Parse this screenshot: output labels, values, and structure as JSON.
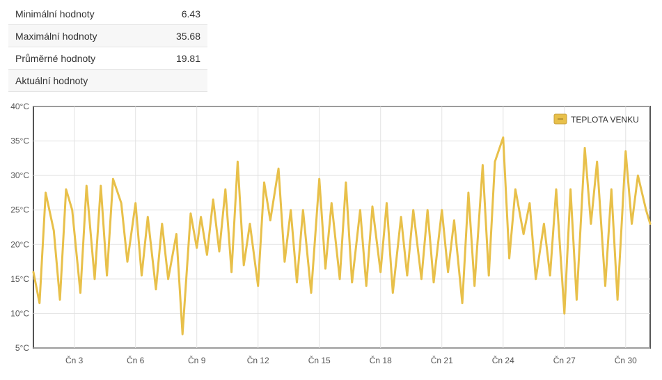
{
  "stats": {
    "rows": [
      {
        "label": "Minimální hodnoty",
        "value": "6.43"
      },
      {
        "label": "Maximální hodnoty",
        "value": "35.68"
      },
      {
        "label": "Průměrné hodnoty",
        "value": "19.81"
      },
      {
        "label": "Aktuální hodnoty",
        "value": ""
      }
    ]
  },
  "chart_data": {
    "type": "line",
    "title": "",
    "xlabel": "",
    "ylabel": "",
    "legend": {
      "position": "top-right",
      "entries": [
        "TEPLOTA VENKU"
      ]
    },
    "grid": true,
    "xlim": [
      1,
      31.2
    ],
    "ylim": [
      5,
      40
    ],
    "y_ticks": [
      {
        "value": 5,
        "label": "5°C"
      },
      {
        "value": 10,
        "label": "10°C"
      },
      {
        "value": 15,
        "label": "15°C"
      },
      {
        "value": 20,
        "label": "20°C"
      },
      {
        "value": 25,
        "label": "25°C"
      },
      {
        "value": 30,
        "label": "30°C"
      },
      {
        "value": 35,
        "label": "35°C"
      },
      {
        "value": 40,
        "label": "40°C"
      }
    ],
    "x_ticks": [
      {
        "value": 3,
        "label": "Čn 3"
      },
      {
        "value": 6,
        "label": "Čn 6"
      },
      {
        "value": 9,
        "label": "Čn 9"
      },
      {
        "value": 12,
        "label": "Čn 12"
      },
      {
        "value": 15,
        "label": "Čn 15"
      },
      {
        "value": 18,
        "label": "Čn 18"
      },
      {
        "value": 21,
        "label": "Čn 21"
      },
      {
        "value": 24,
        "label": "Čn 24"
      },
      {
        "value": 27,
        "label": "Čn 27"
      },
      {
        "value": 30,
        "label": "Čn 30"
      }
    ],
    "series": [
      {
        "name": "TEPLOTA VENKU",
        "color": "#e8c04a",
        "x": [
          1.0,
          1.3,
          1.6,
          2.0,
          2.3,
          2.6,
          2.9,
          3.3,
          3.6,
          4.0,
          4.3,
          4.6,
          4.9,
          5.3,
          5.6,
          6.0,
          6.3,
          6.6,
          7.0,
          7.3,
          7.6,
          8.0,
          8.3,
          8.7,
          9.0,
          9.2,
          9.5,
          9.8,
          10.1,
          10.4,
          10.7,
          11.0,
          11.3,
          11.6,
          12.0,
          12.3,
          12.6,
          13.0,
          13.3,
          13.6,
          13.9,
          14.2,
          14.6,
          15.0,
          15.3,
          15.6,
          16.0,
          16.3,
          16.6,
          17.0,
          17.3,
          17.6,
          18.0,
          18.3,
          18.6,
          19.0,
          19.3,
          19.6,
          20.0,
          20.3,
          20.6,
          21.0,
          21.3,
          21.6,
          22.0,
          22.3,
          22.6,
          23.0,
          23.3,
          23.6,
          24.0,
          24.3,
          24.6,
          25.0,
          25.3,
          25.6,
          26.0,
          26.3,
          26.6,
          27.0,
          27.3,
          27.6,
          28.0,
          28.3,
          28.6,
          29.0,
          29.3,
          29.6,
          30.0,
          30.3,
          30.6,
          31.0,
          31.2
        ],
        "values": [
          16.0,
          11.5,
          27.5,
          22.0,
          12.0,
          28.0,
          25.0,
          13.0,
          28.5,
          15.0,
          28.5,
          15.5,
          29.5,
          26.0,
          17.5,
          26.0,
          15.5,
          24.0,
          13.5,
          23.0,
          15.0,
          21.5,
          7.0,
          24.5,
          19.5,
          24.0,
          18.5,
          26.5,
          19.0,
          28.0,
          16.0,
          32.0,
          17.0,
          23.0,
          14.0,
          29.0,
          23.5,
          31.0,
          17.5,
          25.0,
          14.5,
          25.0,
          13.0,
          29.5,
          16.5,
          26.0,
          15.0,
          29.0,
          14.5,
          25.0,
          14.0,
          25.5,
          16.0,
          26.0,
          13.0,
          24.0,
          15.5,
          25.0,
          15.0,
          25.0,
          14.5,
          25.0,
          16.0,
          23.5,
          11.5,
          27.5,
          14.0,
          31.5,
          15.5,
          32.0,
          35.5,
          18.0,
          28.0,
          21.5,
          26.0,
          15.0,
          23.0,
          15.5,
          28.0,
          10.0,
          28.0,
          12.0,
          34.0,
          23.0,
          32.0,
          14.0,
          28.0,
          12.0,
          33.5,
          23.0,
          30.0,
          25.0,
          23.0
        ]
      }
    ]
  }
}
